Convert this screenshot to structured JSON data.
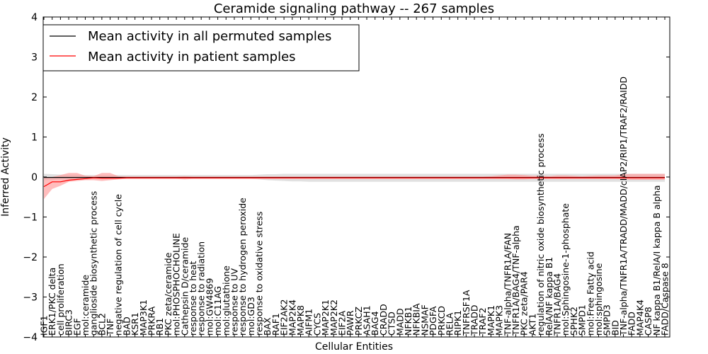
{
  "chart_data": {
    "type": "line",
    "title": "Ceramide signaling pathway -- 267 samples",
    "xlabel": "Cellular Entities",
    "ylabel": "Inferred Activity",
    "ylim": [
      -4,
      4
    ],
    "yticks": [
      4,
      3,
      2,
      1,
      0,
      -1,
      -2,
      -3,
      -4
    ],
    "ytick_labels": [
      "4",
      "3",
      "2",
      "1",
      "0",
      "−1",
      "−2",
      "−3",
      "−4"
    ],
    "grid": false,
    "legend_position": "top-left",
    "categories": [
      "IGF1",
      "ERK1/PKC delta",
      "cell proliferation",
      "BIRC3",
      "EGF",
      "mol:ceramide",
      "ganglioside biosynthetic process",
      "BCL2",
      "TNF",
      "negative regulation of cell cycle",
      "BAD",
      "KSR1",
      "MAP3K1",
      "PRKRA",
      "RB1",
      "PKC zeta/ceramide",
      "mol:PHOSPHOCHOLINE",
      "Cathepsin D/ceramide",
      "response to heat",
      "response to radiation",
      "mol:GW4869",
      "mol:C11AG",
      "mol:glutathione",
      "response to UV",
      "response to hydrogen peroxide",
      "mol:GD3",
      "response to oxidative stress",
      "BAX",
      "RAF1",
      "EIF2AK2",
      "MAP2K4",
      "MAPK8",
      "AIFM1",
      "CYCS",
      "MAP2K1",
      "MAP2K2",
      "EIF2A",
      "PAWR",
      "PRKCZ",
      "ASAH1",
      "BAG4",
      "CRADD",
      "CTSD",
      "MADD",
      "NFKB1",
      "NFKBIA",
      "NSMAF",
      "PDGFA",
      "PRKCD",
      "RELA",
      "RIPK1",
      "TNFRSF1A",
      "TRADD",
      "TRAF2",
      "MAPK1",
      "MAPK3",
      "TNF-alpha/TNFR1A/FAN",
      "TNFR1A/BAG4/TNF-alpha",
      "PKC zeta/PAR4",
      "AKT1",
      "regulation of nitric oxide biosynthetic process",
      "RelA/NF kappa B1",
      "TNFR1A/BAG4",
      "mol:Sphingosine-1-phosphate",
      "SPHK2",
      "SMPD1",
      "mol:Free Fatty acid",
      "mol:sphingosine",
      "SMPD3",
      "BID",
      "TNF-alpha/TNFR1A/TRADD/MADD/cIAP2/RIP1/TRAF2/RAIDD",
      "FADD",
      "MAP4K4",
      "CASP8",
      "NF kappa B1/RelA/I kappa B alpha",
      "FADD/Caspase 8"
    ],
    "series": [
      {
        "name": "Mean activity in all permuted samples",
        "color": "#000000",
        "band_color": "#c8c8c8",
        "values": [
          -0.01,
          -0.01,
          -0.01,
          -0.01,
          -0.01,
          -0.01,
          -0.01,
          -0.01,
          -0.01,
          -0.01,
          -0.01,
          -0.01,
          -0.01,
          -0.01,
          -0.01,
          -0.01,
          -0.01,
          -0.01,
          -0.01,
          -0.01,
          -0.01,
          -0.01,
          -0.01,
          -0.01,
          -0.01,
          -0.01,
          -0.01,
          -0.01,
          -0.01,
          -0.01,
          -0.01,
          -0.01,
          -0.01,
          -0.01,
          -0.01,
          -0.01,
          -0.01,
          -0.01,
          -0.01,
          -0.01,
          -0.01,
          -0.01,
          -0.01,
          -0.01,
          -0.01,
          -0.01,
          -0.01,
          -0.01,
          -0.01,
          -0.01,
          -0.01,
          -0.01,
          -0.01,
          -0.01,
          -0.01,
          -0.01,
          -0.01,
          -0.01,
          -0.01,
          -0.01,
          -0.01,
          -0.01,
          -0.01,
          -0.01,
          -0.01,
          -0.01,
          -0.01,
          -0.01,
          -0.01,
          -0.01,
          -0.01,
          -0.01,
          -0.01,
          -0.01,
          -0.01,
          -0.01
        ],
        "upper": [
          0.08,
          0.07,
          0.06,
          0.06,
          0.06,
          0.05,
          0.05,
          0.05,
          0.05,
          0.05,
          0.05,
          0.05,
          0.05,
          0.05,
          0.05,
          0.05,
          0.05,
          0.05,
          0.05,
          0.05,
          0.05,
          0.05,
          0.05,
          0.05,
          0.05,
          0.05,
          0.06,
          0.07,
          0.07,
          0.08,
          0.08,
          0.08,
          0.08,
          0.08,
          0.08,
          0.08,
          0.08,
          0.08,
          0.08,
          0.08,
          0.08,
          0.08,
          0.08,
          0.08,
          0.08,
          0.08,
          0.08,
          0.08,
          0.08,
          0.08,
          0.08,
          0.08,
          0.08,
          0.08,
          0.08,
          0.08,
          0.08,
          0.08,
          0.08,
          0.08,
          0.08,
          0.08,
          0.08,
          0.08,
          0.08,
          0.08,
          0.08,
          0.08,
          0.08,
          0.08,
          0.08,
          0.08,
          0.08,
          0.08,
          0.08,
          0.08
        ],
        "lower": [
          -0.08,
          -0.07,
          -0.06,
          -0.06,
          -0.06,
          -0.05,
          -0.05,
          -0.05,
          -0.05,
          -0.05,
          -0.05,
          -0.05,
          -0.05,
          -0.05,
          -0.05,
          -0.05,
          -0.05,
          -0.05,
          -0.05,
          -0.05,
          -0.05,
          -0.05,
          -0.05,
          -0.05,
          -0.05,
          -0.05,
          -0.06,
          -0.08,
          -0.09,
          -0.1,
          -0.11,
          -0.11,
          -0.12,
          -0.12,
          -0.12,
          -0.12,
          -0.12,
          -0.12,
          -0.12,
          -0.12,
          -0.12,
          -0.12,
          -0.12,
          -0.12,
          -0.12,
          -0.12,
          -0.12,
          -0.12,
          -0.12,
          -0.12,
          -0.12,
          -0.12,
          -0.12,
          -0.12,
          -0.12,
          -0.12,
          -0.12,
          -0.12,
          -0.12,
          -0.12,
          -0.12,
          -0.12,
          -0.12,
          -0.12,
          -0.12,
          -0.12,
          -0.12,
          -0.12,
          -0.12,
          -0.12,
          -0.12,
          -0.12,
          -0.12,
          -0.12,
          -0.12,
          -0.12
        ]
      },
      {
        "name": "Mean activity in patient samples",
        "color": "#ff0000",
        "band_color": "#ff9a9a",
        "values": [
          -0.24,
          -0.12,
          -0.12,
          -0.08,
          -0.06,
          -0.04,
          -0.02,
          -0.03,
          -0.03,
          -0.03,
          -0.02,
          -0.02,
          -0.02,
          -0.02,
          -0.02,
          -0.02,
          -0.02,
          -0.02,
          -0.02,
          -0.02,
          -0.02,
          -0.02,
          -0.02,
          -0.02,
          -0.02,
          -0.02,
          -0.02,
          -0.02,
          -0.02,
          -0.02,
          -0.02,
          -0.02,
          -0.02,
          -0.02,
          -0.02,
          -0.02,
          -0.02,
          -0.02,
          -0.02,
          -0.02,
          -0.02,
          -0.02,
          -0.02,
          -0.02,
          -0.02,
          -0.02,
          -0.02,
          -0.02,
          -0.02,
          -0.02,
          -0.02,
          -0.02,
          -0.02,
          -0.02,
          -0.02,
          -0.02,
          -0.02,
          -0.02,
          -0.02,
          -0.02,
          -0.02,
          -0.02,
          -0.02,
          -0.02,
          -0.02,
          -0.02,
          -0.02,
          -0.02,
          -0.02,
          -0.02,
          -0.02,
          -0.02,
          -0.02,
          -0.02,
          -0.02,
          -0.02
        ],
        "upper": [
          -0.02,
          0.0,
          0.05,
          0.1,
          0.1,
          0.03,
          0.02,
          0.1,
          0.1,
          0.02,
          0.01,
          0.01,
          0.01,
          0.01,
          0.01,
          0.01,
          0.01,
          0.02,
          0.01,
          0.01,
          0.01,
          0.01,
          0.01,
          0.01,
          0.01,
          0.01,
          0.01,
          0.01,
          0.01,
          0.01,
          0.01,
          0.01,
          0.01,
          0.01,
          0.01,
          0.01,
          0.01,
          0.01,
          0.01,
          0.01,
          0.01,
          0.01,
          0.01,
          0.01,
          0.01,
          0.01,
          0.01,
          0.01,
          0.01,
          0.01,
          0.01,
          0.01,
          0.01,
          0.01,
          0.02,
          0.04,
          0.06,
          0.06,
          0.05,
          0.03,
          0.03,
          0.02,
          0.04,
          0.04,
          0.03,
          0.02,
          0.03,
          0.04,
          0.04,
          0.04,
          0.07,
          0.08,
          0.08,
          0.08,
          0.08,
          0.08
        ],
        "lower": [
          -0.55,
          -0.3,
          -0.22,
          -0.12,
          -0.1,
          -0.08,
          -0.08,
          -0.1,
          -0.08,
          -0.06,
          -0.05,
          -0.05,
          -0.05,
          -0.05,
          -0.05,
          -0.05,
          -0.05,
          -0.06,
          -0.05,
          -0.05,
          -0.05,
          -0.05,
          -0.05,
          -0.05,
          -0.05,
          -0.05,
          -0.05,
          -0.05,
          -0.05,
          -0.05,
          -0.05,
          -0.05,
          -0.05,
          -0.05,
          -0.05,
          -0.05,
          -0.05,
          -0.05,
          -0.05,
          -0.05,
          -0.05,
          -0.05,
          -0.05,
          -0.05,
          -0.05,
          -0.05,
          -0.05,
          -0.05,
          -0.05,
          -0.05,
          -0.05,
          -0.05,
          -0.05,
          -0.05,
          -0.05,
          -0.05,
          -0.05,
          -0.06,
          -0.06,
          -0.05,
          -0.05,
          -0.05,
          -0.05,
          -0.05,
          -0.05,
          -0.05,
          -0.05,
          -0.05,
          -0.05,
          -0.05,
          -0.06,
          -0.07,
          -0.07,
          -0.07,
          -0.07,
          -0.07
        ]
      }
    ]
  }
}
